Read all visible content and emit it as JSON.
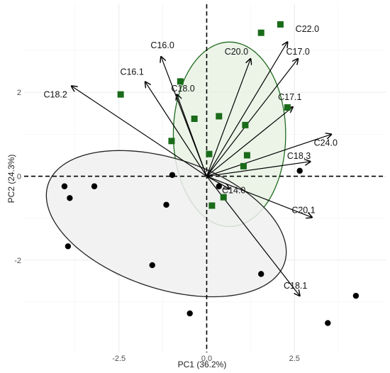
{
  "chart_data": {
    "type": "scatter",
    "title": "",
    "xlabel": "PC1 (36.2%)",
    "ylabel": "PC2 (24.3%)",
    "xlim": [
      -5.2,
      5.1
    ],
    "ylim": [
      -4.2,
      4.1
    ],
    "x_ticks": [
      -2.5,
      0.0,
      2.5
    ],
    "x_tick_labels": [
      "-2.5",
      "0.0",
      "2.5"
    ],
    "y_ticks": [
      -2,
      0,
      2
    ],
    "y_tick_labels": [
      "-2",
      "0",
      "2"
    ],
    "grid": true,
    "legend": "none",
    "reference_lines": {
      "x": 0,
      "y": 0,
      "style": "dashed"
    },
    "colors": {
      "group_a": "#1a6b1a",
      "group_b": "#000000",
      "ellipse_a_fill": "#e6f0e0",
      "ellipse_a_stroke": "#1f6b1f",
      "ellipse_b_fill": "#f0f0f0",
      "ellipse_b_stroke": "#222222",
      "vector": "#000000",
      "grid_major": "#ebebeb",
      "grid_minor": "#f5f5f5"
    },
    "series": [
      {
        "marker": "square",
        "color": "#1a6b1a",
        "points": [
          [
            -2.45,
            1.95
          ],
          [
            -0.75,
            2.26
          ],
          [
            -1.0,
            0.84
          ],
          [
            -0.35,
            1.37
          ],
          [
            0.35,
            1.43
          ],
          [
            0.07,
            0.53
          ],
          [
            1.1,
            1.22
          ],
          [
            1.15,
            0.5
          ],
          [
            1.05,
            0.24
          ],
          [
            0.48,
            -0.5
          ],
          [
            0.15,
            -0.7
          ],
          [
            2.3,
            1.64
          ],
          [
            1.55,
            3.42
          ],
          [
            2.1,
            3.62
          ]
        ]
      },
      {
        "marker": "circle",
        "color": "#000000",
        "points": [
          [
            -4.05,
            -0.24
          ],
          [
            -3.9,
            -0.52
          ],
          [
            -3.2,
            -0.24
          ],
          [
            -3.95,
            -1.67
          ],
          [
            -1.15,
            -0.68
          ],
          [
            -1.55,
            -2.12
          ],
          [
            -0.98,
            0.03
          ],
          [
            -0.48,
            -3.27
          ],
          [
            0.35,
            -0.24
          ],
          [
            1.55,
            -2.33
          ],
          [
            2.65,
            0.13
          ],
          [
            3.45,
            -3.5
          ],
          [
            4.25,
            -2.85
          ]
        ]
      }
    ],
    "ellipses": [
      {
        "group": "squares",
        "center": [
          0.65,
          1.0
        ],
        "rx": 1.6,
        "ry": 2.2,
        "rotation_deg": 0
      },
      {
        "group": "circles",
        "center": [
          -1.15,
          -1.13
        ],
        "rx": 3.5,
        "ry": 1.57,
        "rotation_deg": -14
      }
    ],
    "vectors": [
      {
        "label": "C16.0",
        "end": [
          -1.3,
          2.85
        ]
      },
      {
        "label": "C16.1",
        "end": [
          -1.75,
          2.25
        ]
      },
      {
        "label": "C18.0",
        "end": [
          -0.85,
          1.95
        ]
      },
      {
        "label": "C18.2",
        "end": [
          -3.85,
          2.15
        ]
      },
      {
        "label": "C20.0",
        "end": [
          1.25,
          2.8
        ]
      },
      {
        "label": "C22.0",
        "end": [
          2.3,
          3.2
        ]
      },
      {
        "label": "C17.0",
        "end": [
          2.6,
          2.8
        ]
      },
      {
        "label": "C17.1",
        "end": [
          2.45,
          1.65
        ]
      },
      {
        "label": "C24.0",
        "end": [
          3.55,
          1.0
        ]
      },
      {
        "label": "C18.3",
        "end": [
          2.95,
          0.35
        ]
      },
      {
        "label": "C14.0",
        "end": [
          0.65,
          -0.3
        ]
      },
      {
        "label": "C20.1",
        "end": [
          3.0,
          -0.98
        ]
      },
      {
        "label": "C18.1",
        "end": [
          2.65,
          -2.85
        ]
      }
    ]
  },
  "vector_labels": [
    "C16.0",
    "C16.1",
    "C18.0",
    "C18.2",
    "C20.0",
    "C22.0",
    "C17.0",
    "C17.1",
    "C24.0",
    "C18.3",
    "C14.0",
    "C20.1",
    "C18.1"
  ]
}
